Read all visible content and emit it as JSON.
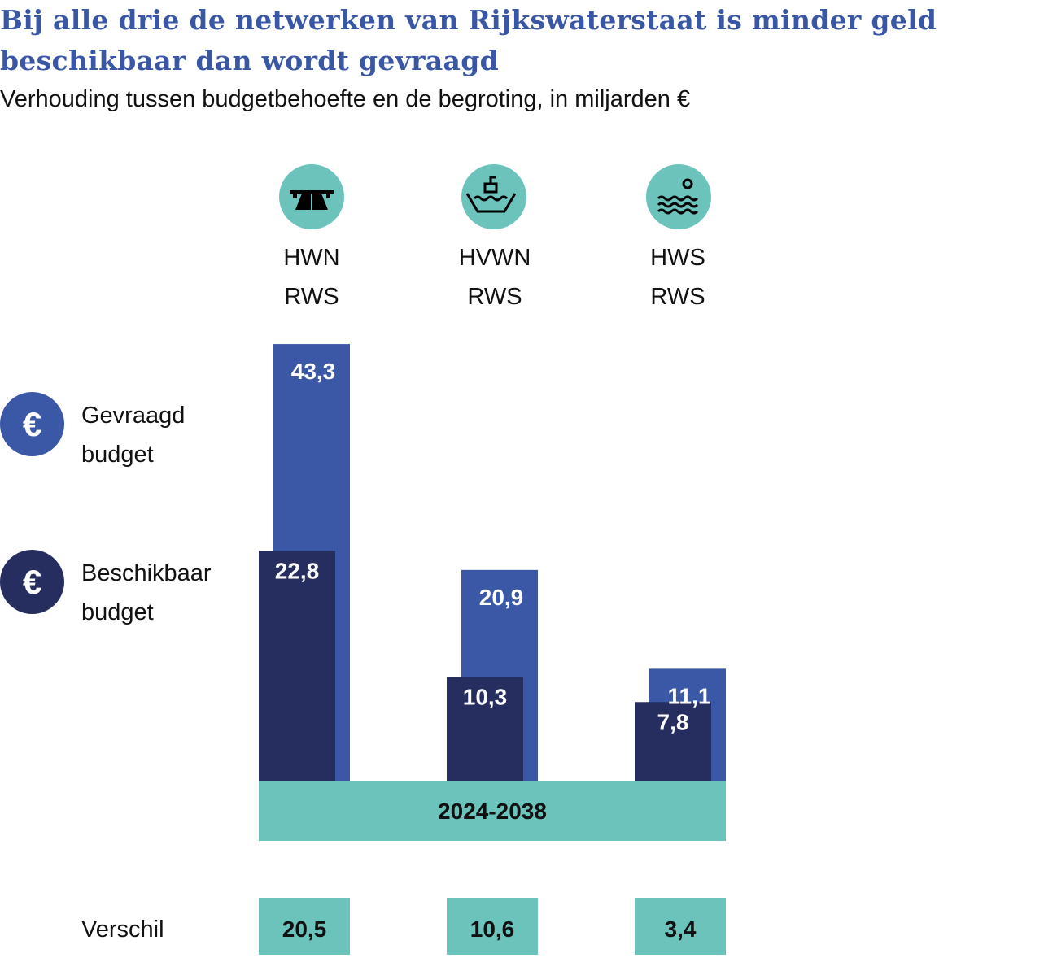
{
  "title": "Bij alle drie de netwerken van Rijkswaterstaat is minder geld beschikbaar dan wordt gevraagd",
  "subtitle": "Verhouding tussen budgetbehoefte en de begroting, in miljarden €",
  "colors": {
    "title": "#3a57a5",
    "gevraagd": "#3b58a6",
    "beschikbaar": "#262d5f",
    "teal": "#6cc3bc"
  },
  "legend": [
    {
      "symbol": "€",
      "line1": "Gevraagd",
      "line2": "budget"
    },
    {
      "symbol": "€",
      "line1": "Beschikbaar",
      "line2": "budget"
    }
  ],
  "networks": [
    {
      "name": "HWN",
      "sub": "RWS",
      "icon": "road-bridge-icon"
    },
    {
      "name": "HVWN",
      "sub": "RWS",
      "icon": "ship-icon"
    },
    {
      "name": "HWS",
      "sub": "RWS",
      "icon": "water-sun-icon"
    }
  ],
  "chart_data": {
    "type": "bar",
    "categories": [
      "HWN RWS",
      "HVWN RWS",
      "HWS RWS"
    ],
    "series": [
      {
        "name": "Gevraagd budget",
        "values": [
          43.3,
          20.9,
          11.1
        ],
        "labels": [
          "43,3",
          "20,9",
          "11,1"
        ]
      },
      {
        "name": "Beschikbaar budget",
        "values": [
          22.8,
          10.3,
          7.8
        ],
        "labels": [
          "22,8",
          "10,3",
          "7,8"
        ]
      }
    ],
    "period": "2024-2038",
    "difference_label": "Verschil",
    "difference": [
      20.5,
      10.6,
      3.4
    ],
    "difference_labels": [
      "20,5",
      "10,6",
      "3,4"
    ]
  }
}
